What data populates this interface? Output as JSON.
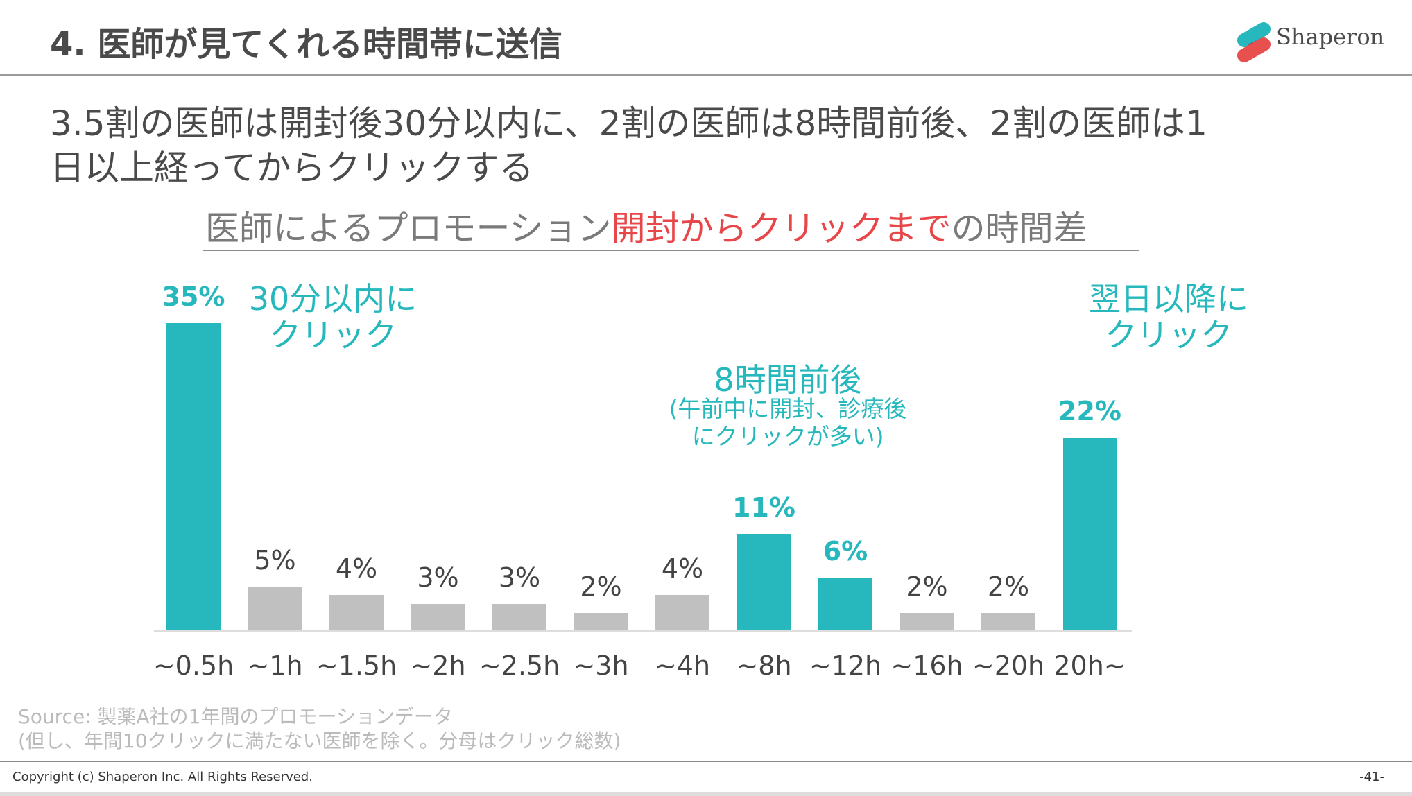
{
  "header": {
    "title": "4. 医師が見てくれる時間帯に送信",
    "logo_text": "Shaperon"
  },
  "subtitle": {
    "line1": "3.5割の医師は開封後30分以内に、2割の医師は8時間前後、2割の医師は1",
    "line2": "日以上経ってからクリックする"
  },
  "colors": {
    "accent": "#26b8bc",
    "grey": "#c0c0c0",
    "red": "#e8474a"
  },
  "chart_data": {
    "type": "bar",
    "title_parts": [
      "医師によるプロモーション",
      "開封からクリックまで",
      "の時間差"
    ],
    "categories": [
      "~0.5h",
      "~1h",
      "~1.5h",
      "~2h",
      "~2.5h",
      "~3h",
      "~4h",
      "~8h",
      "~12h",
      "~16h",
      "~20h",
      "20h~"
    ],
    "values": [
      35,
      5,
      4,
      3,
      3,
      2,
      4,
      11,
      6,
      2,
      2,
      22
    ],
    "labels": [
      "35%",
      "5%",
      "4%",
      "3%",
      "3%",
      "2%",
      "4%",
      "11%",
      "6%",
      "2%",
      "2%",
      "22%"
    ],
    "highlighted": [
      true,
      false,
      false,
      false,
      false,
      false,
      false,
      true,
      true,
      false,
      false,
      true
    ],
    "ylim": [
      0,
      35
    ],
    "annotations": {
      "early": [
        "30分以内に",
        "クリック"
      ],
      "mid": "8時間前後",
      "mid_sub": [
        "(午前中に開封、診療後",
        "にクリックが多い)"
      ],
      "late": [
        "翌日以降に",
        "クリック"
      ]
    }
  },
  "source": {
    "line1": "Source: 製薬A社の1年間のプロモーションデータ",
    "line2": "(但し、年間10クリックに満たない医師を除く。分母はクリック総数)"
  },
  "footer": {
    "copyright": "Copyright (c) Shaperon Inc.  All Rights Reserved.",
    "page": "-41-"
  }
}
